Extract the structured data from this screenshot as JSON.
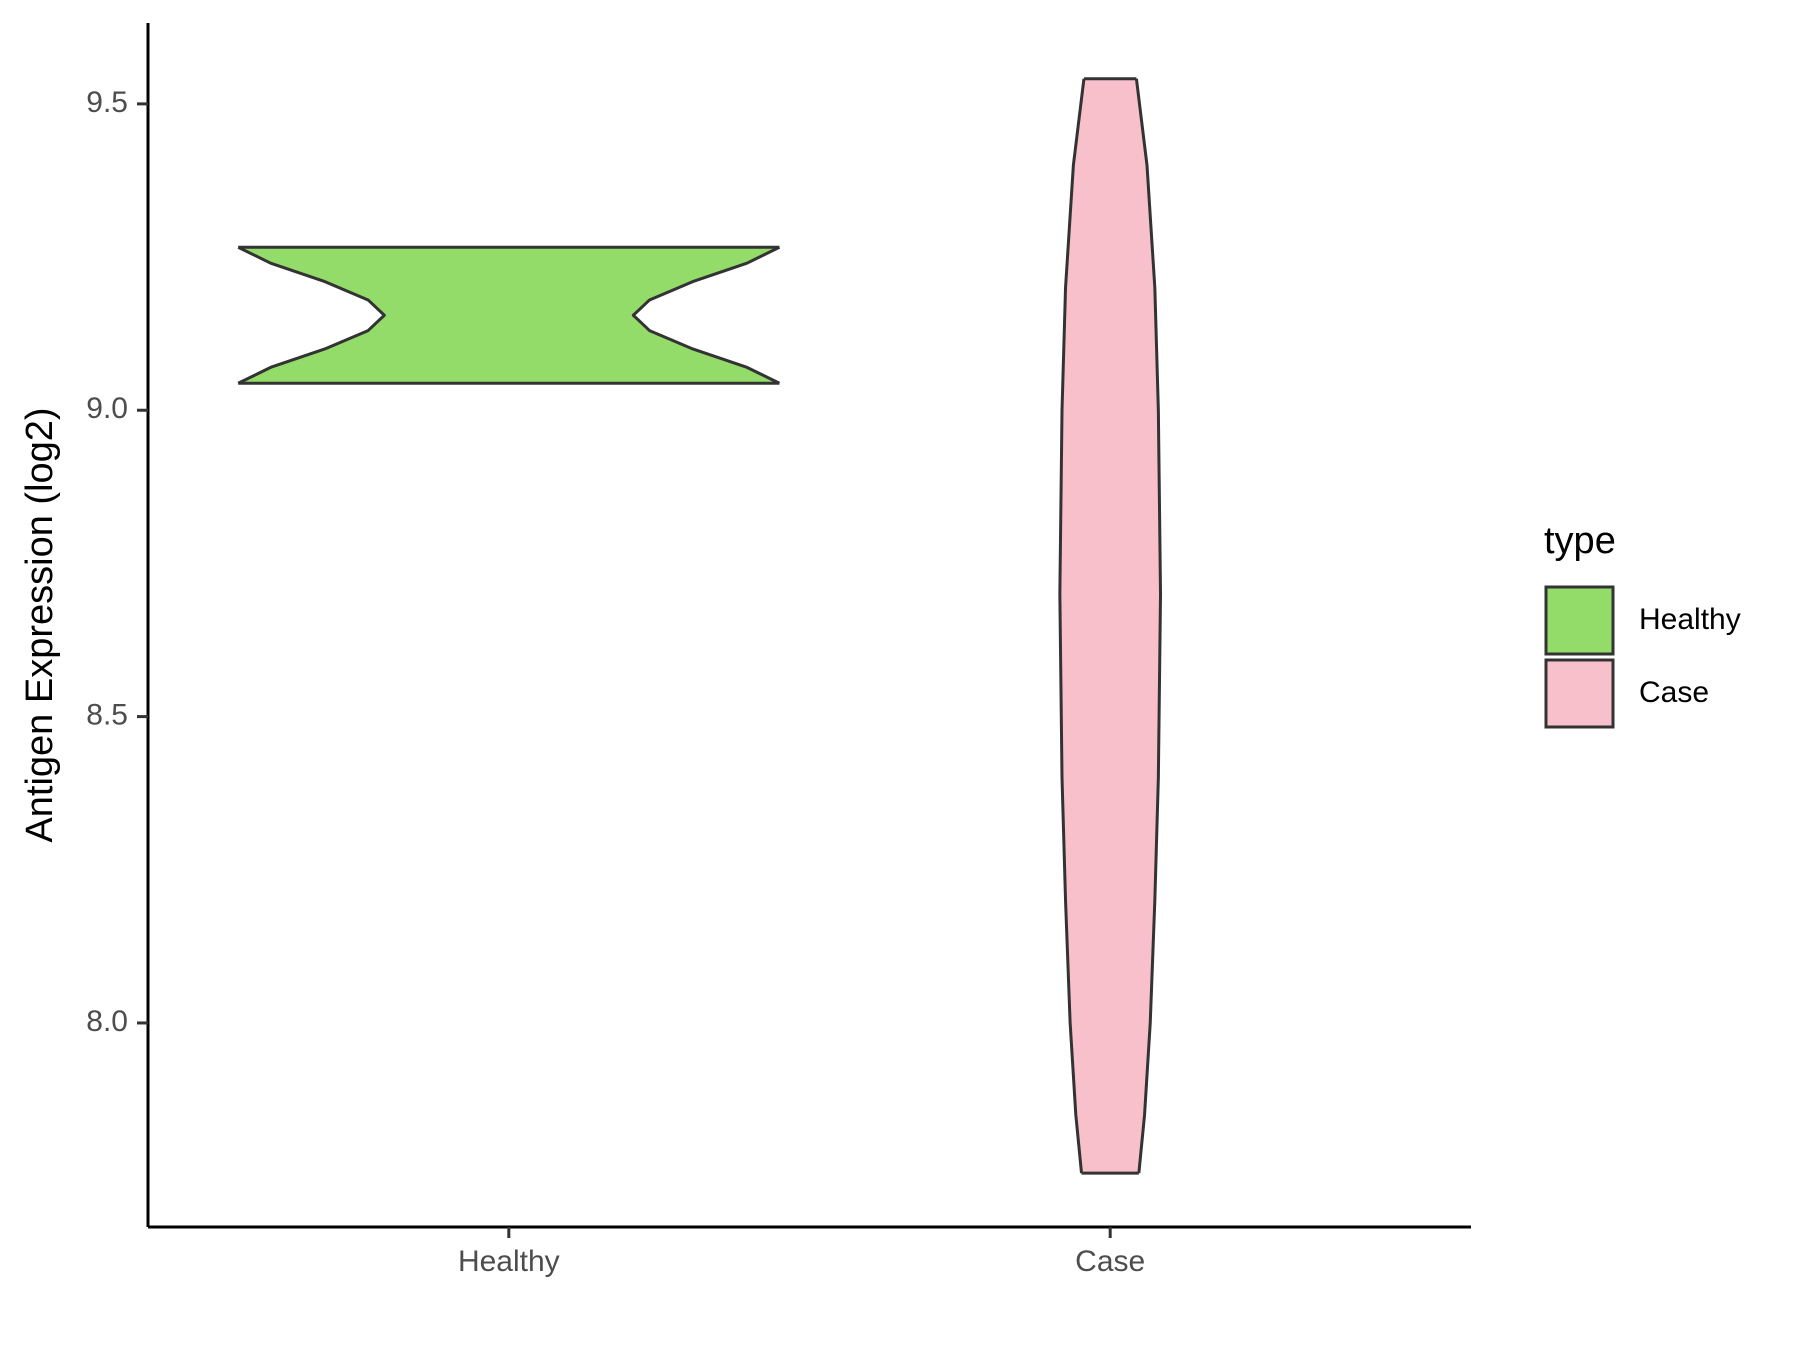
{
  "chart_data": {
    "type": "violin",
    "y_label": "Antigen Expression (log2)",
    "categories": [
      "Healthy",
      "Case"
    ],
    "legend_title": "type",
    "series": [
      {
        "name": "Healthy",
        "color": "#93dc6a",
        "y": [
          9.044,
          9.07,
          9.1,
          9.13,
          9.155,
          9.18,
          9.21,
          9.24,
          9.266
        ],
        "density": [
          1.0,
          0.88,
          0.68,
          0.52,
          0.46,
          0.52,
          0.68,
          0.88,
          1.0
        ]
      },
      {
        "name": "Case",
        "color": "#f7c0cb",
        "y": [
          7.755,
          7.85,
          8.0,
          8.2,
          8.4,
          8.7,
          9.0,
          9.2,
          9.4,
          9.541
        ],
        "density": [
          0.106,
          0.127,
          0.148,
          0.165,
          0.178,
          0.186,
          0.178,
          0.165,
          0.136,
          0.097
        ]
      }
    ],
    "ylim": [
      7.667,
      9.632
    ],
    "yticks": [
      {
        "value": 8,
        "label": "8.0"
      },
      8.5,
      {
        "value": 9,
        "label": "9.0"
      },
      9.5
    ],
    "grid": false
  }
}
